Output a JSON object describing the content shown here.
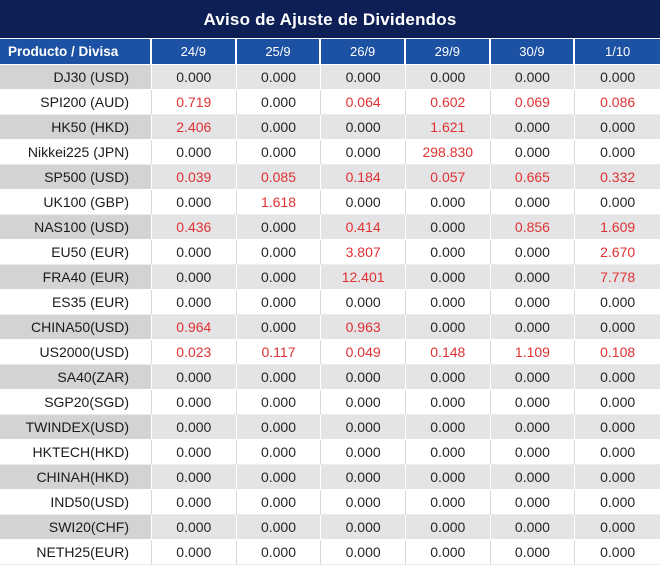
{
  "title": "Aviso de Ajuste de Dividendos",
  "colors": {
    "title_bg": "#0d1f55",
    "header_bg": "#1c51a3",
    "row_gray_label": "#d3d3d5",
    "row_gray_value": "#e4e4e6",
    "value_negative_red": "#e03132",
    "value_black": "#262626"
  },
  "header": {
    "columns": [
      "Producto / Divisa",
      "24/9",
      "25/9",
      "26/9",
      "29/9",
      "30/9",
      "1/10"
    ]
  },
  "rows": [
    {
      "label": "DJ30 (USD)",
      "values": [
        "0.000",
        "0.000",
        "0.000",
        "0.000",
        "0.000",
        "0.000"
      ],
      "red": [
        0,
        0,
        0,
        0,
        0,
        0
      ]
    },
    {
      "label": "SPI200 (AUD)",
      "values": [
        "0.719",
        "0.000",
        "0.064",
        "0.602",
        "0.069",
        "0.086"
      ],
      "red": [
        1,
        0,
        1,
        1,
        1,
        1
      ]
    },
    {
      "label": "HK50 (HKD)",
      "values": [
        "2.406",
        "0.000",
        "0.000",
        "1.621",
        "0.000",
        "0.000"
      ],
      "red": [
        1,
        0,
        0,
        1,
        0,
        0
      ]
    },
    {
      "label": "Nikkei225 (JPN)",
      "values": [
        "0.000",
        "0.000",
        "0.000",
        "298.830",
        "0.000",
        "0.000"
      ],
      "red": [
        0,
        0,
        0,
        1,
        0,
        0
      ]
    },
    {
      "label": "SP500 (USD)",
      "values": [
        "0.039",
        "0.085",
        "0.184",
        "0.057",
        "0.665",
        "0.332"
      ],
      "red": [
        1,
        1,
        1,
        1,
        1,
        1
      ]
    },
    {
      "label": "UK100 (GBP)",
      "values": [
        "0.000",
        "1.618",
        "0.000",
        "0.000",
        "0.000",
        "0.000"
      ],
      "red": [
        0,
        1,
        0,
        0,
        0,
        0
      ]
    },
    {
      "label": "NAS100 (USD)",
      "values": [
        "0.436",
        "0.000",
        "0.414",
        "0.000",
        "0.856",
        "1.609"
      ],
      "red": [
        1,
        0,
        1,
        0,
        1,
        1
      ]
    },
    {
      "label": "EU50 (EUR)",
      "values": [
        "0.000",
        "0.000",
        "3.807",
        "0.000",
        "0.000",
        "2.670"
      ],
      "red": [
        0,
        0,
        1,
        0,
        0,
        1
      ]
    },
    {
      "label": "FRA40 (EUR)",
      "values": [
        "0.000",
        "0.000",
        "12.401",
        "0.000",
        "0.000",
        "7.778"
      ],
      "red": [
        0,
        0,
        1,
        0,
        0,
        1
      ]
    },
    {
      "label": "ES35 (EUR)",
      "values": [
        "0.000",
        "0.000",
        "0.000",
        "0.000",
        "0.000",
        "0.000"
      ],
      "red": [
        0,
        0,
        0,
        0,
        0,
        0
      ]
    },
    {
      "label": "CHINA50(USD)",
      "values": [
        "0.964",
        "0.000",
        "0.963",
        "0.000",
        "0.000",
        "0.000"
      ],
      "red": [
        1,
        0,
        1,
        0,
        0,
        0
      ]
    },
    {
      "label": "US2000(USD)",
      "values": [
        "0.023",
        "0.117",
        "0.049",
        "0.148",
        "1.109",
        "0.108"
      ],
      "red": [
        1,
        1,
        1,
        1,
        1,
        1
      ]
    },
    {
      "label": "SA40(ZAR)",
      "values": [
        "0.000",
        "0.000",
        "0.000",
        "0.000",
        "0.000",
        "0.000"
      ],
      "red": [
        0,
        0,
        0,
        0,
        0,
        0
      ]
    },
    {
      "label": "SGP20(SGD)",
      "values": [
        "0.000",
        "0.000",
        "0.000",
        "0.000",
        "0.000",
        "0.000"
      ],
      "red": [
        0,
        0,
        0,
        0,
        0,
        0
      ]
    },
    {
      "label": "TWINDEX(USD)",
      "values": [
        "0.000",
        "0.000",
        "0.000",
        "0.000",
        "0.000",
        "0.000"
      ],
      "red": [
        0,
        0,
        0,
        0,
        0,
        0
      ]
    },
    {
      "label": "HKTECH(HKD)",
      "values": [
        "0.000",
        "0.000",
        "0.000",
        "0.000",
        "0.000",
        "0.000"
      ],
      "red": [
        0,
        0,
        0,
        0,
        0,
        0
      ]
    },
    {
      "label": "CHINAH(HKD)",
      "values": [
        "0.000",
        "0.000",
        "0.000",
        "0.000",
        "0.000",
        "0.000"
      ],
      "red": [
        0,
        0,
        0,
        0,
        0,
        0
      ]
    },
    {
      "label": "IND50(USD)",
      "values": [
        "0.000",
        "0.000",
        "0.000",
        "0.000",
        "0.000",
        "0.000"
      ],
      "red": [
        0,
        0,
        0,
        0,
        0,
        0
      ]
    },
    {
      "label": "SWI20(CHF)",
      "values": [
        "0.000",
        "0.000",
        "0.000",
        "0.000",
        "0.000",
        "0.000"
      ],
      "red": [
        0,
        0,
        0,
        0,
        0,
        0
      ]
    },
    {
      "label": "NETH25(EUR)",
      "values": [
        "0.000",
        "0.000",
        "0.000",
        "0.000",
        "0.000",
        "0.000"
      ],
      "red": [
        0,
        0,
        0,
        0,
        0,
        0
      ]
    }
  ]
}
